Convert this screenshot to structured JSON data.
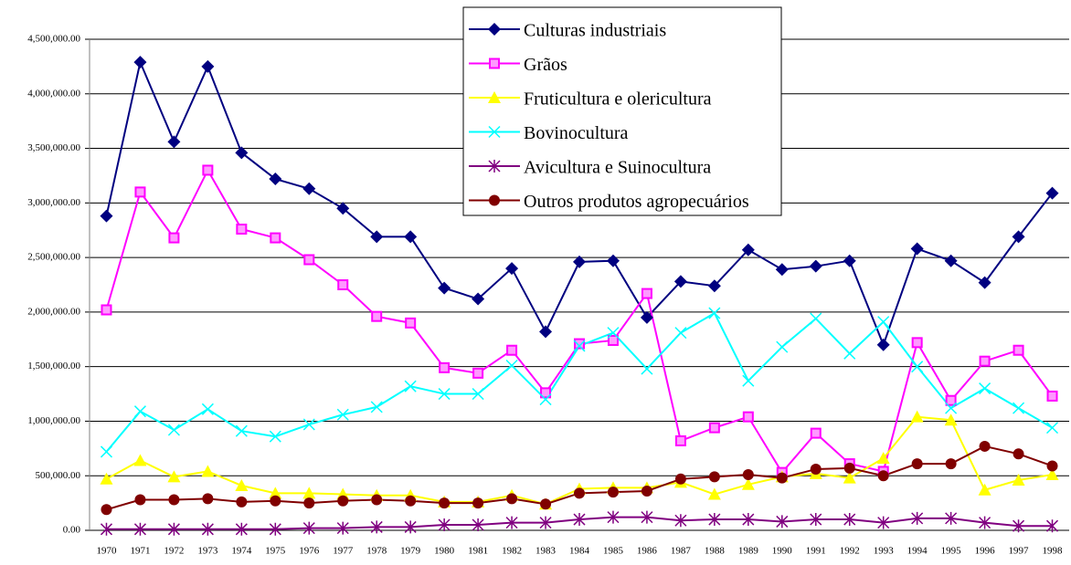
{
  "chart_data": {
    "type": "line",
    "categories": [
      "1970",
      "1971",
      "1972",
      "1973",
      "1974",
      "1975",
      "1976",
      "1977",
      "1978",
      "1979",
      "1980",
      "1981",
      "1982",
      "1983",
      "1984",
      "1985",
      "1986",
      "1987",
      "1988",
      "1989",
      "1990",
      "1991",
      "1992",
      "1993",
      "1994",
      "1995",
      "1996",
      "1997",
      "1998"
    ],
    "series": [
      {
        "name": "Culturas industriais",
        "color": "#000080",
        "marker": "diamond",
        "values": [
          2880000,
          4290000,
          3560000,
          4250000,
          3460000,
          3220000,
          3130000,
          2950000,
          2690000,
          2690000,
          2220000,
          2120000,
          2400000,
          1820000,
          2460000,
          2470000,
          1950000,
          2280000,
          2240000,
          2570000,
          2390000,
          2420000,
          2470000,
          1700000,
          2580000,
          2470000,
          2270000,
          2690000,
          3090000
        ]
      },
      {
        "name": "Grãos",
        "color": "#ff00ff",
        "marker": "square",
        "values": [
          2020000,
          3100000,
          2680000,
          3300000,
          2760000,
          2680000,
          2480000,
          2250000,
          1960000,
          1900000,
          1490000,
          1440000,
          1650000,
          1260000,
          1710000,
          1740000,
          2170000,
          820000,
          940000,
          1040000,
          530000,
          890000,
          610000,
          540000,
          1720000,
          1190000,
          1550000,
          1650000,
          1230000
        ]
      },
      {
        "name": "Fruticultura e olericultura",
        "color": "#ffff00",
        "marker": "triangle",
        "values": [
          470000,
          640000,
          490000,
          540000,
          410000,
          340000,
          340000,
          330000,
          320000,
          320000,
          260000,
          260000,
          320000,
          240000,
          380000,
          390000,
          390000,
          440000,
          330000,
          420000,
          490000,
          520000,
          480000,
          660000,
          1040000,
          1010000,
          370000,
          460000,
          510000
        ]
      },
      {
        "name": "Bovinocultura",
        "color": "#00ffff",
        "marker": "x",
        "values": [
          720000,
          1090000,
          920000,
          1110000,
          910000,
          860000,
          970000,
          1060000,
          1130000,
          1320000,
          1250000,
          1250000,
          1510000,
          1200000,
          1690000,
          1810000,
          1480000,
          1810000,
          1990000,
          1370000,
          1680000,
          1940000,
          1620000,
          1910000,
          1500000,
          1120000,
          1300000,
          1120000,
          940000
        ]
      },
      {
        "name": "Avicultura e Suinocultura",
        "color": "#800080",
        "marker": "star",
        "values": [
          10000,
          10000,
          10000,
          10000,
          10000,
          10000,
          20000,
          20000,
          30000,
          30000,
          50000,
          50000,
          70000,
          70000,
          100000,
          120000,
          120000,
          90000,
          100000,
          100000,
          80000,
          100000,
          100000,
          70000,
          110000,
          110000,
          70000,
          40000,
          40000
        ]
      },
      {
        "name": "Outros produtos agropecuários",
        "color": "#800000",
        "marker": "circle",
        "values": [
          190000,
          280000,
          280000,
          290000,
          260000,
          270000,
          250000,
          270000,
          280000,
          270000,
          250000,
          250000,
          290000,
          240000,
          340000,
          350000,
          360000,
          470000,
          490000,
          510000,
          480000,
          560000,
          570000,
          500000,
          610000,
          610000,
          770000,
          700000,
          590000
        ]
      }
    ],
    "ylim": [
      0,
      4500000
    ],
    "yticks": [
      {
        "value": 0,
        "label": "0.00"
      },
      {
        "value": 500000,
        "label": "500,000.00"
      },
      {
        "value": 1000000,
        "label": "1,000,000.00"
      },
      {
        "value": 1500000,
        "label": "1,500,000.00"
      },
      {
        "value": 2000000,
        "label": "2,000,000.00"
      },
      {
        "value": 2500000,
        "label": "2,500,000.00"
      },
      {
        "value": 3000000,
        "label": "3,000,000.00"
      },
      {
        "value": 3500000,
        "label": "3,500,000.00"
      },
      {
        "value": 4000000,
        "label": "4,000,000.00"
      },
      {
        "value": 4500000,
        "label": "4,500,000.00"
      }
    ],
    "grid": true,
    "legend": "top"
  }
}
